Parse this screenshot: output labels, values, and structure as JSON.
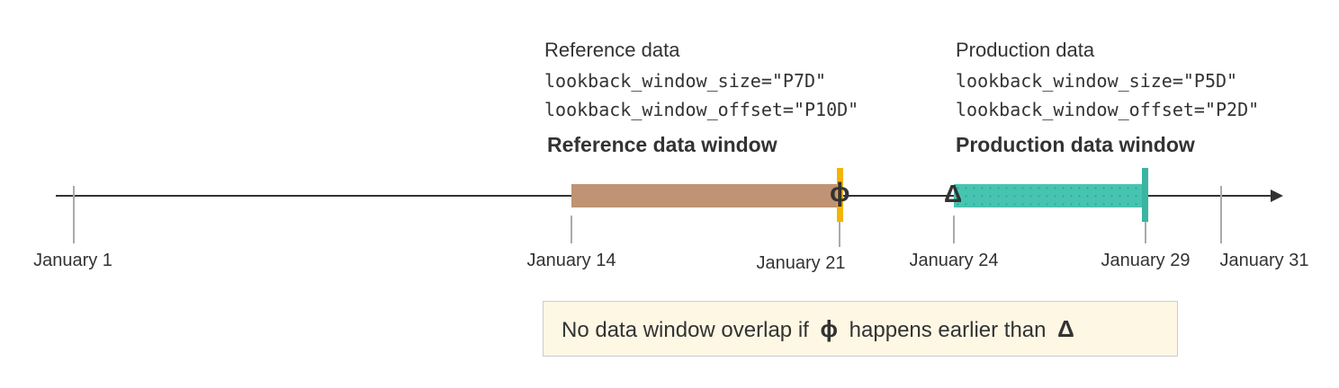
{
  "reference": {
    "title": "Reference data",
    "size": "lookback_window_size=\"P7D\"",
    "offset": "lookback_window_offset=\"P10D\"",
    "window_label": "Reference data window",
    "color": "#bf9373",
    "end_marker_color": "#f5b400"
  },
  "production": {
    "title": "Production data",
    "size": "lookback_window_size=\"P5D\"",
    "offset": "lookback_window_offset=\"P2D\"",
    "window_label": "Production data window",
    "color": "#47c4b1"
  },
  "symbols": {
    "phi": "ϕ",
    "delta": "Δ"
  },
  "dates": [
    "January 1",
    "January 14",
    "January 21",
    "January 24",
    "January 29",
    "January 31"
  ],
  "note": {
    "before": "No data window overlap if",
    "middle": "happens earlier than"
  }
}
